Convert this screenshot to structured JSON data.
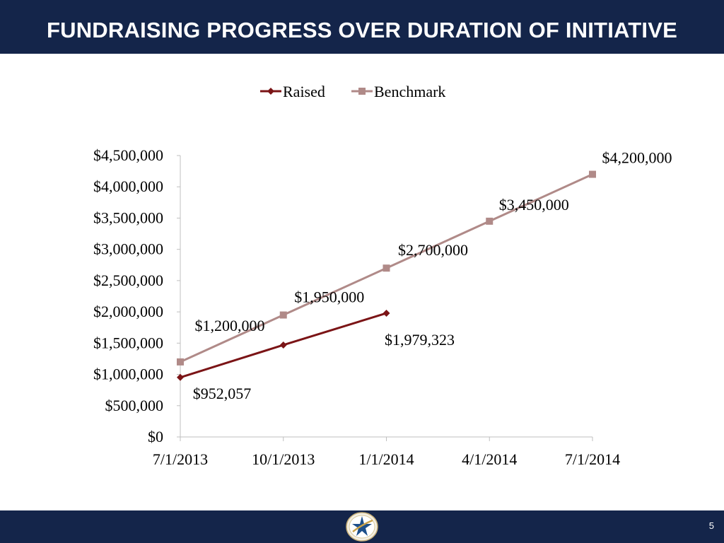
{
  "slide": {
    "title": "FUNDRAISING PROGRESS OVER DURATION OF INITIATIVE",
    "page_number": "5"
  },
  "colors": {
    "header_bg": "#14254a",
    "raised": "#7b1416",
    "benchmark": "#b08a88",
    "axis": "#bfbfbf"
  },
  "logo": {
    "icon": "star-emblem-logo"
  },
  "chart_data": {
    "type": "line",
    "title": "",
    "xlabel": "",
    "ylabel": "",
    "x": [
      "7/1/2013",
      "10/1/2013",
      "1/1/2014",
      "4/1/2014",
      "7/1/2014"
    ],
    "ylim": [
      0,
      4500000
    ],
    "y_ticks": [
      {
        "value": 0,
        "label": "$0"
      },
      {
        "value": 500000,
        "label": "$500,000"
      },
      {
        "value": 1000000,
        "label": "$1,000,000"
      },
      {
        "value": 1500000,
        "label": "$1,500,000"
      },
      {
        "value": 2000000,
        "label": "$2,000,000"
      },
      {
        "value": 2500000,
        "label": "$2,500,000"
      },
      {
        "value": 3000000,
        "label": "$3,000,000"
      },
      {
        "value": 3500000,
        "label": "$3,500,000"
      },
      {
        "value": 4000000,
        "label": "$4,000,000"
      },
      {
        "value": 4500000,
        "label": "$4,500,000"
      }
    ],
    "grid": false,
    "legend": "top-center",
    "series": [
      {
        "name": "Raised",
        "marker": "diamond",
        "values": [
          952057,
          1470000,
          1979323,
          null,
          null
        ],
        "labels": [
          "$952,057",
          "",
          "$1,979,323",
          "",
          ""
        ]
      },
      {
        "name": "Benchmark",
        "marker": "square",
        "values": [
          1200000,
          1950000,
          2700000,
          3450000,
          4200000
        ],
        "labels": [
          "$1,200,000",
          "$1,950,000",
          "$2,700,000",
          "$3,450,000",
          "$4,200,000"
        ]
      }
    ]
  }
}
